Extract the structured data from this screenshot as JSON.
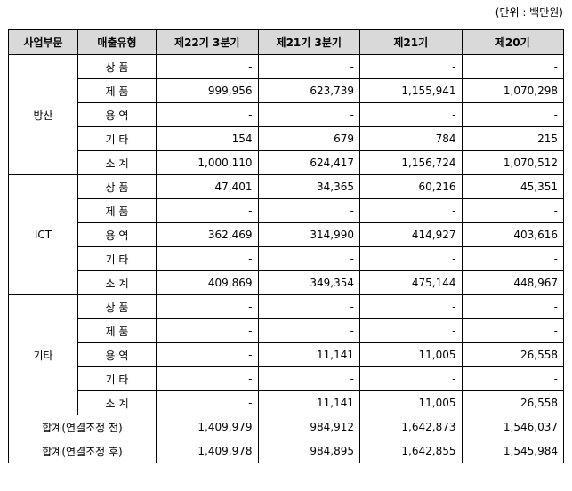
{
  "unit_label": "(단위 : 백만원)",
  "headers": [
    "사업부문",
    "매출유형",
    "제22기 3분기",
    "제21기 3분기",
    "제21기",
    "제20기"
  ],
  "segments": [
    {
      "name": "방산",
      "rows": [
        {
          "cat": "상 품",
          "v": [
            "-",
            "-",
            "-",
            "-"
          ]
        },
        {
          "cat": "제 품",
          "v": [
            "999,956",
            "623,739",
            "1,155,941",
            "1,070,298"
          ]
        },
        {
          "cat": "용 역",
          "v": [
            "-",
            "-",
            "-",
            "-"
          ]
        },
        {
          "cat": "기 타",
          "v": [
            "154",
            "679",
            "784",
            "215"
          ]
        },
        {
          "cat": "소 계",
          "v": [
            "1,000,110",
            "624,417",
            "1,156,724",
            "1,070,512"
          ]
        }
      ]
    },
    {
      "name": "ICT",
      "rows": [
        {
          "cat": "상 품",
          "v": [
            "47,401",
            "34,365",
            "60,216",
            "45,351"
          ]
        },
        {
          "cat": "제 품",
          "v": [
            "-",
            "-",
            "-",
            "-"
          ]
        },
        {
          "cat": "용 역",
          "v": [
            "362,469",
            "314,990",
            "414,927",
            "403,616"
          ]
        },
        {
          "cat": "기 타",
          "v": [
            "-",
            "-",
            "-",
            "-"
          ]
        },
        {
          "cat": "소 계",
          "v": [
            "409,869",
            "349,354",
            "475,144",
            "448,967"
          ]
        }
      ]
    },
    {
      "name": "기타",
      "rows": [
        {
          "cat": "상 품",
          "v": [
            "-",
            "-",
            "-",
            "-"
          ]
        },
        {
          "cat": "제 품",
          "v": [
            "-",
            "-",
            "-",
            "-"
          ]
        },
        {
          "cat": "용 역",
          "v": [
            "-",
            "11,141",
            "11,005",
            "26,558"
          ]
        },
        {
          "cat": "기 타",
          "v": [
            "-",
            "-",
            "-",
            "-"
          ]
        },
        {
          "cat": "소 계",
          "v": [
            "-",
            "11,141",
            "11,005",
            "26,558"
          ]
        }
      ]
    }
  ],
  "totals": [
    {
      "label": "합계(연결조정 전)",
      "v": [
        "1,409,979",
        "984,912",
        "1,642,873",
        "1,546,037"
      ]
    },
    {
      "label": "합계(연결조정 후)",
      "v": [
        "1,409,978",
        "984,895",
        "1,642,855",
        "1,545,984"
      ]
    }
  ]
}
